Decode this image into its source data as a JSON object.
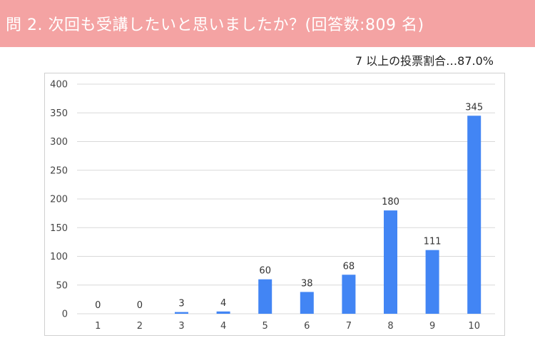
{
  "header": {
    "title": "問 2. 次回も受講したいと思いましたか？(回答数:809 名)"
  },
  "subtitle": "7 以上の投票割合…87.0%",
  "colors": {
    "banner": "#f4a3a3",
    "bar": "#4285f4",
    "grid": "#d9d9d9"
  },
  "chart_data": {
    "type": "bar",
    "categories": [
      "1",
      "2",
      "3",
      "4",
      "5",
      "6",
      "7",
      "8",
      "9",
      "10"
    ],
    "values": [
      0,
      0,
      3,
      4,
      60,
      38,
      68,
      180,
      111,
      345
    ],
    "ylim": [
      0,
      400
    ],
    "yticks": [
      0,
      50,
      100,
      150,
      200,
      250,
      300,
      350,
      400
    ],
    "grid": true,
    "legend": "none"
  }
}
